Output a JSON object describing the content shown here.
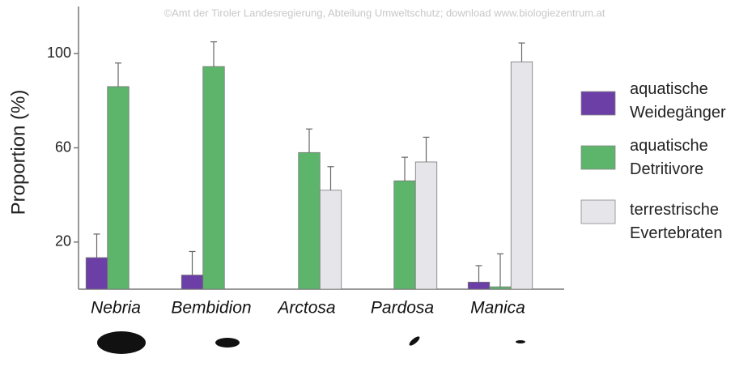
{
  "chart_data": {
    "type": "bar",
    "watermark": "©Amt der Tiroler Landesregierung, Abteilung Umweltschutz; download www.biologiezentrum.at",
    "y_label": "Proportion (%)",
    "categories": [
      "Nebria",
      "Bembidion",
      "Arctosa",
      "Pardosa",
      "Manica"
    ],
    "series": [
      {
        "name": "aquatische Weidegänger",
        "color": "#6b3fa6",
        "values": [
          13.4,
          6,
          null,
          null,
          3
        ],
        "errors": [
          10,
          10,
          null,
          null,
          7
        ]
      },
      {
        "name": "aquatische Detritivore",
        "color": "#5db56c",
        "values": [
          86,
          94.5,
          58,
          46,
          1
        ],
        "errors": [
          10,
          10.5,
          10,
          10,
          14
        ]
      },
      {
        "name": "terrestrische Evertebraten",
        "color": "#e6e6ea",
        "values": [
          null,
          null,
          42,
          54,
          96.5
        ],
        "errors": [
          null,
          null,
          10,
          10.5,
          8
        ]
      }
    ],
    "ylim": [
      0,
      120
    ],
    "yticks": [
      20,
      60,
      100
    ],
    "legend": "right"
  }
}
